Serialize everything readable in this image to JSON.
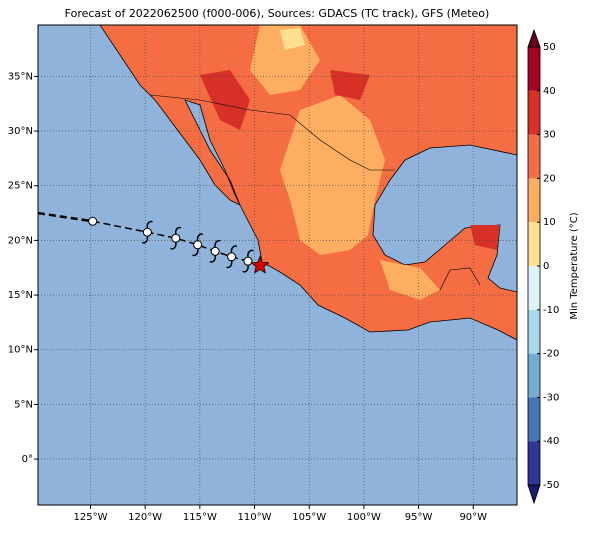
{
  "map": {
    "title": "Forecast of 2022062500 (f000-006), Sources: GDACS (TC track), GFS (Meteo)",
    "xlim": [
      -129.8,
      -86
    ],
    "ylim": [
      -4.2,
      39.7
    ],
    "xticks": [
      {
        "value": -125,
        "label": "125°W"
      },
      {
        "value": -120,
        "label": "120°W"
      },
      {
        "value": -115,
        "label": "115°W"
      },
      {
        "value": -110,
        "label": "110°W"
      },
      {
        "value": -105,
        "label": "105°W"
      },
      {
        "value": -100,
        "label": "100°W"
      },
      {
        "value": -95,
        "label": "95°W"
      },
      {
        "value": -90,
        "label": "90°W"
      }
    ],
    "yticks": [
      {
        "value": 0,
        "label": "0°"
      },
      {
        "value": 5,
        "label": "5°N"
      },
      {
        "value": 10,
        "label": "10°N"
      },
      {
        "value": 15,
        "label": "15°N"
      },
      {
        "value": 20,
        "label": "20°N"
      },
      {
        "value": 25,
        "label": "25°N"
      },
      {
        "value": 30,
        "label": "30°N"
      },
      {
        "value": 35,
        "label": "35°N"
      }
    ],
    "grid": true,
    "ocean_color": "#8fb3da",
    "track": {
      "lon": [
        -129.8,
        -124.8,
        -119.8,
        -117.2,
        -115.2,
        -113.6,
        -112.1,
        -110.6,
        -109.5
      ],
      "lat": [
        22.5,
        21.75,
        20.75,
        20.2,
        19.6,
        19.0,
        18.5,
        18.1,
        17.7
      ]
    },
    "colorbar": {
      "label": "Min Temperature (°C)",
      "ticks": [
        50,
        40,
        30,
        20,
        10,
        0,
        -10,
        -20,
        -30,
        -40,
        -50
      ],
      "colors": [
        "#313695",
        "#4575b4",
        "#74add1",
        "#abd9e9",
        "#e0f3f8",
        "#fee090",
        "#fdae61",
        "#f46d43",
        "#d73027",
        "#a50026"
      ],
      "under_color": "#1a1a6e",
      "over_color": "#67001f"
    }
  }
}
